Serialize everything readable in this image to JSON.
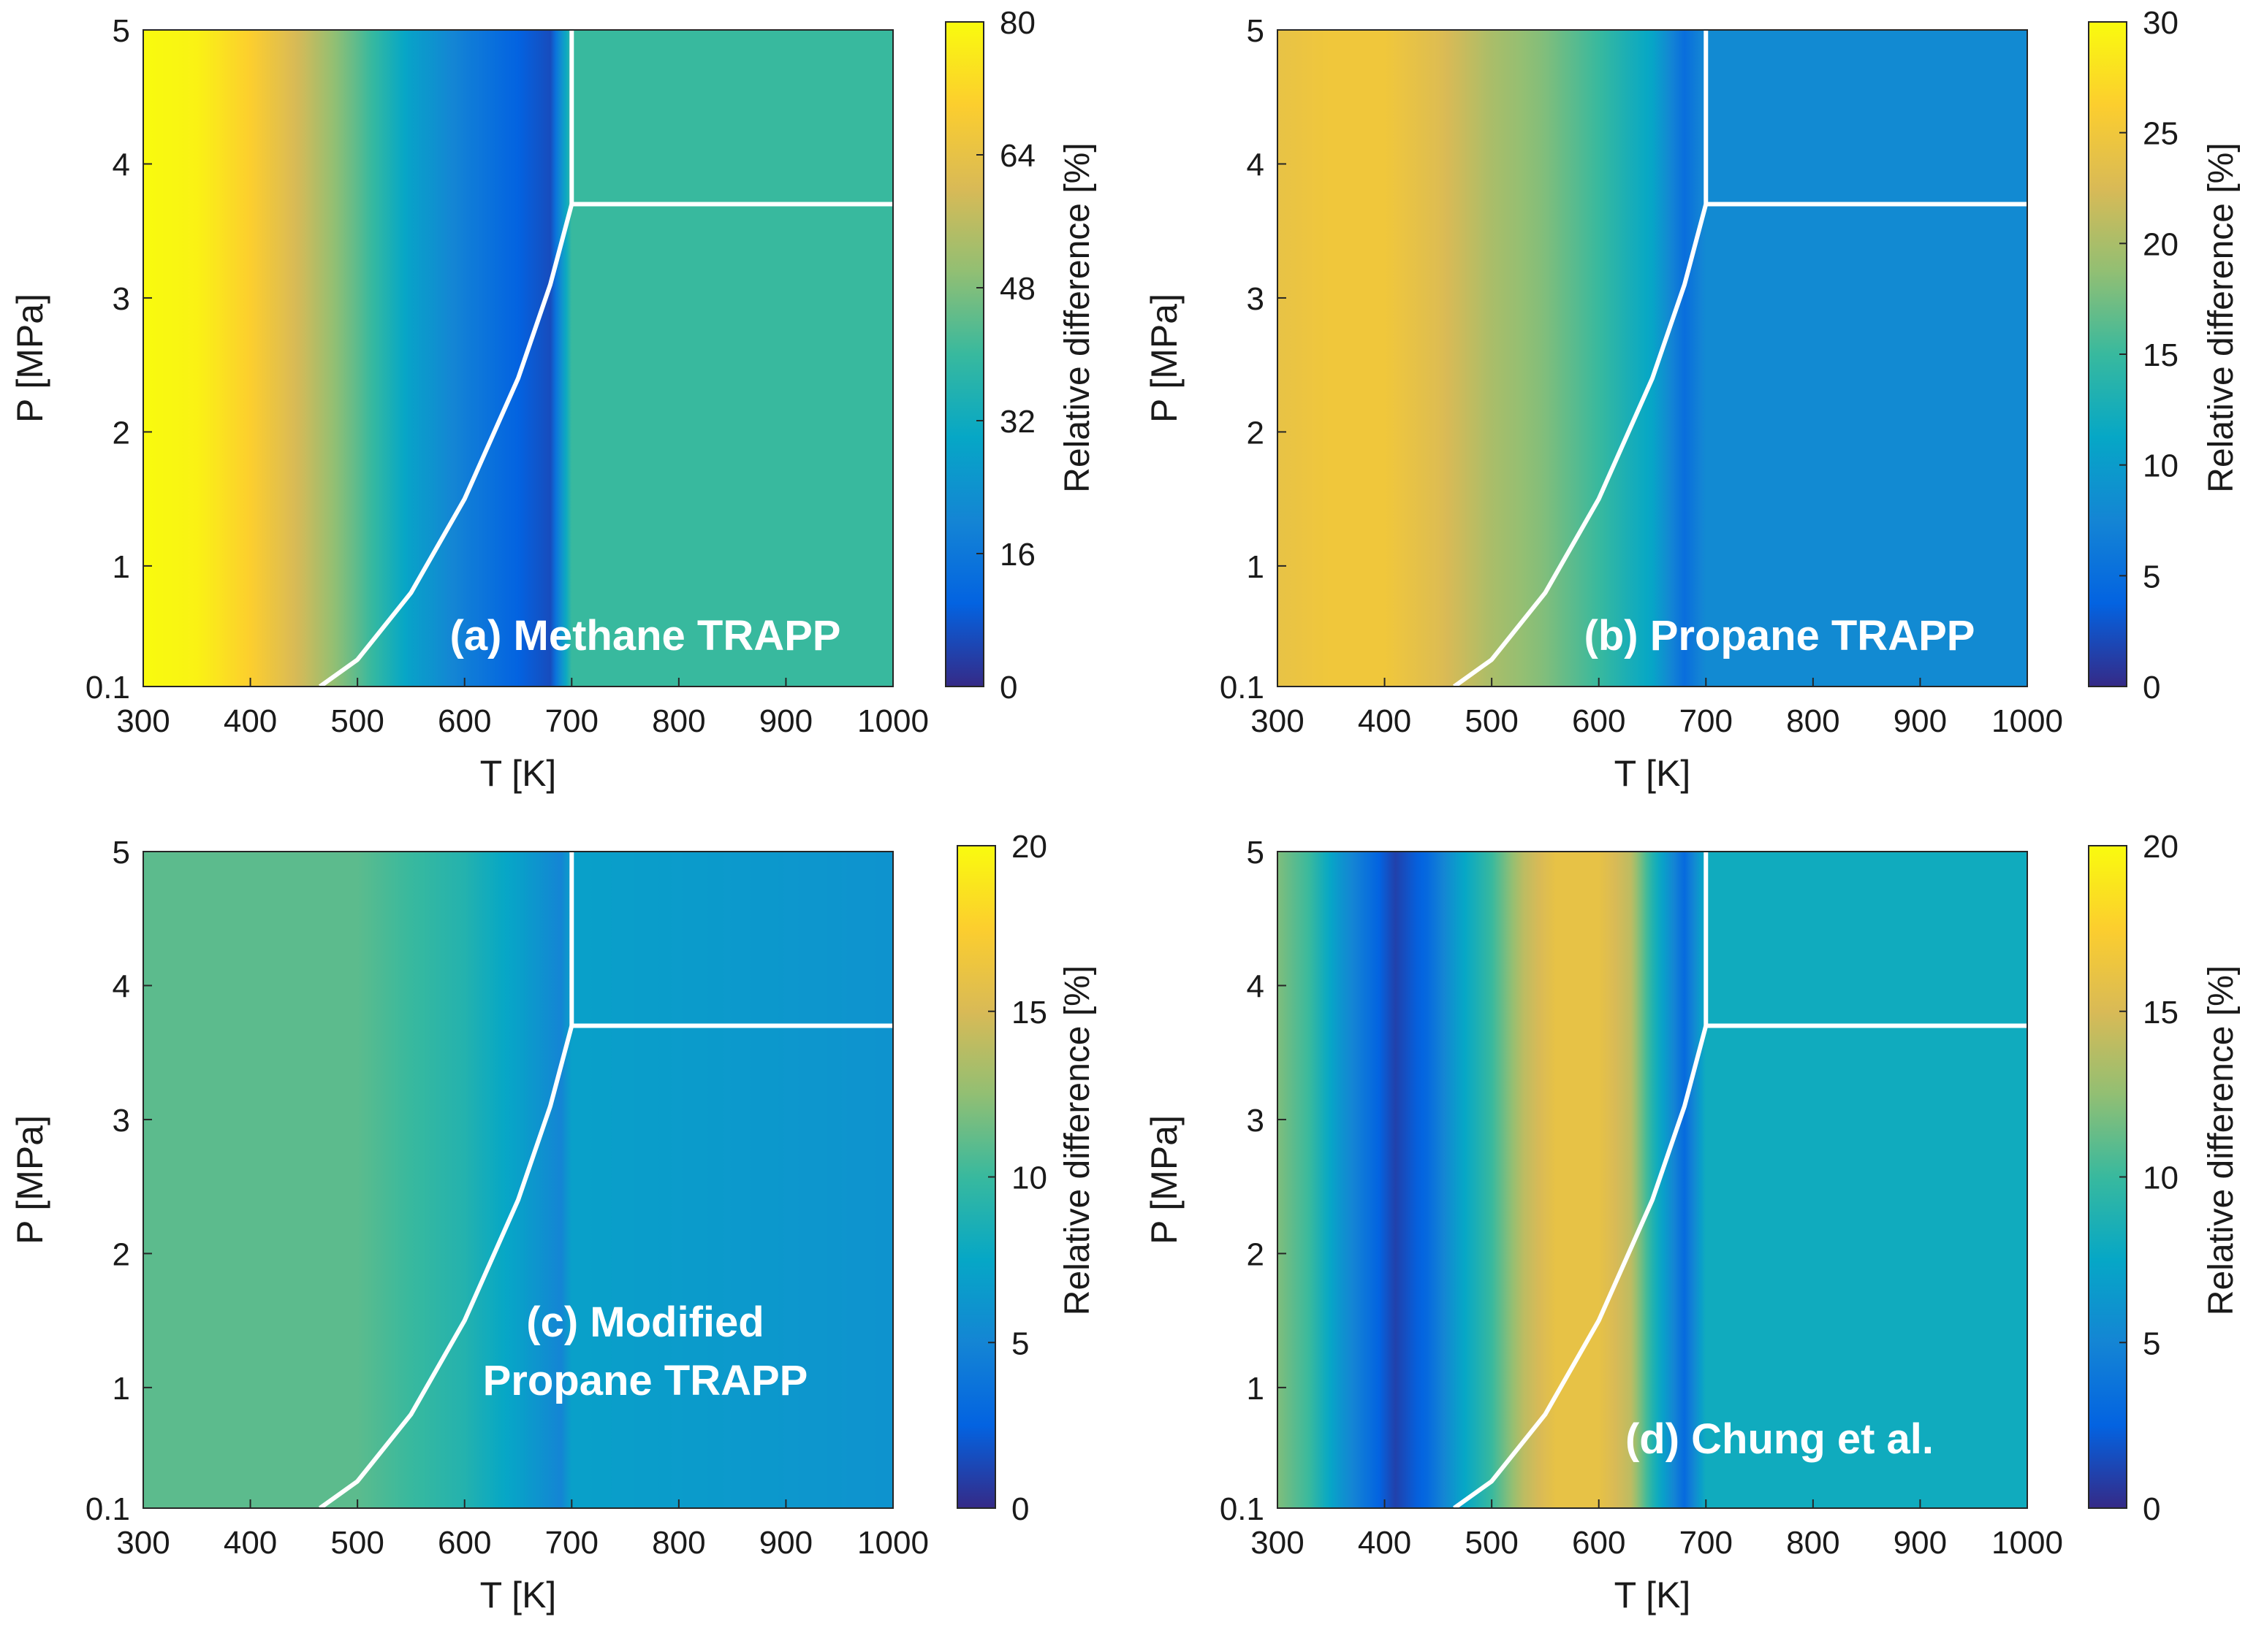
{
  "chart_data": [
    {
      "type": "heatmap",
      "panel_label": [
        "(a) Methane TRAPP"
      ],
      "xlabel": "T [K]",
      "ylabel": "P [MPa]",
      "xlim": [
        300,
        1000
      ],
      "ylim": [
        0.1,
        5
      ],
      "xticks": [
        300,
        400,
        500,
        600,
        700,
        800,
        900,
        1000
      ],
      "yticks": [
        "0.1",
        "1",
        "2",
        "3",
        "4",
        "5"
      ],
      "colorbar": {
        "label": "Relative difference [%]",
        "min": 0,
        "max": 80,
        "ticks": [
          0,
          16,
          32,
          48,
          64,
          80
        ]
      },
      "temperature_profile": {
        "T": [
          300,
          350,
          400,
          450,
          500,
          550,
          600,
          650,
          680,
          700,
          1000
        ],
        "values": [
          80,
          78,
          70,
          58,
          44,
          28,
          18,
          10,
          6,
          40,
          40
        ]
      },
      "saturation_curve": {
        "T": [
          465,
          500,
          550,
          600,
          650,
          680,
          700
        ],
        "P": [
          0.1,
          0.3,
          0.8,
          1.5,
          2.4,
          3.1,
          3.7
        ]
      },
      "critical_pressure_line": 3.7,
      "critical_temperature_line": 700
    },
    {
      "type": "heatmap",
      "panel_label": [
        "(b) Propane TRAPP"
      ],
      "xlabel": "T [K]",
      "ylabel": "P [MPa]",
      "xlim": [
        300,
        1000
      ],
      "ylim": [
        0.1,
        5
      ],
      "xticks": [
        300,
        400,
        500,
        600,
        700,
        800,
        900,
        1000
      ],
      "yticks": [
        "0.1",
        "1",
        "2",
        "3",
        "4",
        "5"
      ],
      "colorbar": {
        "label": "Relative difference [%]",
        "min": 0,
        "max": 30,
        "ticks": [
          0,
          5,
          10,
          15,
          20,
          25,
          30
        ]
      },
      "temperature_profile": {
        "T": [
          300,
          350,
          400,
          450,
          500,
          550,
          600,
          650,
          680,
          700,
          1000
        ],
        "values": [
          24,
          25,
          25,
          23,
          20,
          18,
          15,
          11,
          5,
          8,
          8
        ]
      },
      "saturation_curve": {
        "T": [
          465,
          500,
          550,
          600,
          650,
          680,
          700
        ],
        "P": [
          0.1,
          0.3,
          0.8,
          1.5,
          2.4,
          3.1,
          3.7
        ]
      },
      "critical_pressure_line": 3.7,
      "critical_temperature_line": 700
    },
    {
      "type": "heatmap",
      "panel_label": [
        "(c) Modified",
        "Propane TRAPP"
      ],
      "xlabel": "T [K]",
      "ylabel": "P [MPa]",
      "xlim": [
        300,
        1000
      ],
      "ylim": [
        0.1,
        5
      ],
      "xticks": [
        300,
        400,
        500,
        600,
        700,
        800,
        900,
        1000
      ],
      "yticks": [
        "0.1",
        "1",
        "2",
        "3",
        "4",
        "5"
      ],
      "colorbar": {
        "label": "Relative difference [%]",
        "min": 0,
        "max": 20,
        "ticks": [
          0,
          5,
          10,
          15,
          20
        ]
      },
      "temperature_profile": {
        "T": [
          300,
          400,
          500,
          550,
          600,
          650,
          690,
          700,
          1000
        ],
        "values": [
          11,
          11,
          11,
          10,
          9,
          7,
          5,
          7,
          6
        ]
      },
      "saturation_curve": {
        "T": [
          465,
          500,
          550,
          600,
          650,
          680,
          700
        ],
        "P": [
          0.1,
          0.3,
          0.8,
          1.5,
          2.4,
          3.1,
          3.7
        ]
      },
      "critical_pressure_line": 3.7,
      "critical_temperature_line": 700
    },
    {
      "type": "heatmap",
      "panel_label": [
        "(d) Chung et al."
      ],
      "xlabel": "T [K]",
      "ylabel": "P [MPa]",
      "xlim": [
        300,
        1000
      ],
      "ylim": [
        0.1,
        5
      ],
      "xticks": [
        300,
        400,
        500,
        600,
        700,
        800,
        900,
        1000
      ],
      "yticks": [
        "0.1",
        "1",
        "2",
        "3",
        "4",
        "5"
      ],
      "colorbar": {
        "label": "Relative difference [%]",
        "min": 0,
        "max": 20,
        "ticks": [
          0,
          5,
          10,
          15,
          20
        ]
      },
      "temperature_profile": {
        "T": [
          300,
          330,
          360,
          390,
          410,
          440,
          470,
          500,
          530,
          560,
          600,
          630,
          650,
          680,
          700,
          1000
        ],
        "values": [
          12,
          10,
          6,
          3,
          1,
          3,
          7,
          10,
          14,
          16,
          16,
          14,
          9,
          3,
          8,
          8
        ]
      },
      "saturation_curve": {
        "T": [
          465,
          500,
          550,
          600,
          650,
          680,
          700
        ],
        "P": [
          0.1,
          0.3,
          0.8,
          1.5,
          2.4,
          3.1,
          3.7
        ]
      },
      "critical_pressure_line": 3.7,
      "critical_temperature_line": 700
    }
  ]
}
